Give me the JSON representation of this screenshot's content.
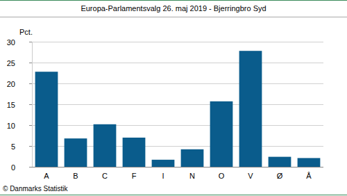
{
  "chart_data": {
    "type": "bar",
    "title": "Europa-Parlamentsvalg 26. maj 2019 - Bjerringbro Syd",
    "y_label": "Pct.",
    "source": "© Danmarks Statistik",
    "categories": [
      "A",
      "B",
      "C",
      "F",
      "I",
      "N",
      "O",
      "V",
      "Ø",
      "Å"
    ],
    "values": [
      22.8,
      6.8,
      10.2,
      7.0,
      1.7,
      4.2,
      15.7,
      27.8,
      2.4,
      2.1
    ],
    "color": "#0a5c8c",
    "ylim": [
      0,
      30
    ],
    "yticks": [
      0,
      5,
      10,
      15,
      20,
      25,
      30
    ],
    "grid": true
  }
}
